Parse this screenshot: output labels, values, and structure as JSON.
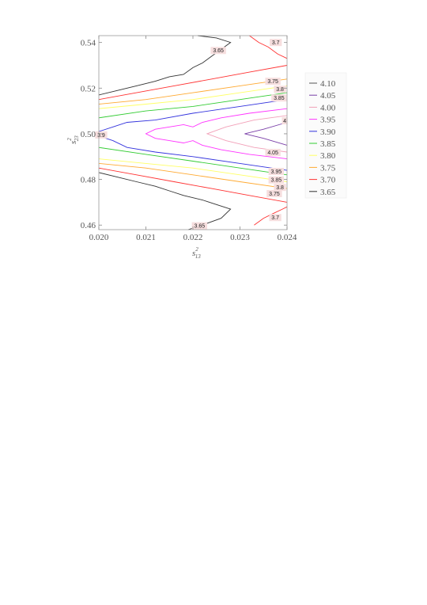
{
  "chart_data": {
    "type": "contour",
    "xlabel": "s",
    "xlabel_sup": "2",
    "xlabel_sub": "13",
    "ylabel": "s",
    "ylabel_sup": "2",
    "ylabel_sub": "23",
    "xlim": [
      0.02,
      0.024
    ],
    "ylim": [
      0.458,
      0.543
    ],
    "xticks": [
      "0.020",
      "0.021",
      "0.022",
      "0.023",
      "0.024"
    ],
    "xtick_values": [
      0.02,
      0.021,
      0.022,
      0.023,
      0.024
    ],
    "yticks": [
      "0.46",
      "0.48",
      "0.50",
      "0.52",
      "0.54"
    ],
    "ytick_values": [
      0.46,
      0.48,
      0.5,
      0.52,
      0.54
    ],
    "legend_position": "right",
    "legend": [
      {
        "label": "4.10",
        "color": "#555555"
      },
      {
        "label": "4.05",
        "color": "#7a3fa8"
      },
      {
        "label": "4.00",
        "color": "#f2a0b8"
      },
      {
        "label": "3.95",
        "color": "#ff33ff"
      },
      {
        "label": "3.90",
        "color": "#3333dd"
      },
      {
        "label": "3.85",
        "color": "#33cc33"
      },
      {
        "label": "3.80",
        "color": "#ffff66"
      },
      {
        "label": "3.75",
        "color": "#ffaa33"
      },
      {
        "label": "3.70",
        "color": "#ff3333"
      },
      {
        "label": "3.65",
        "color": "#333333"
      }
    ],
    "contours": [
      {
        "level": "3.65",
        "color": "#333333",
        "paths": [
          [
            [
              0.02,
              0.517
            ],
            [
              0.0204,
              0.519
            ],
            [
              0.0208,
              0.521
            ],
            [
              0.0212,
              0.523
            ],
            [
              0.0215,
              0.525
            ],
            [
              0.0218,
              0.526
            ],
            [
              0.022,
              0.529
            ],
            [
              0.0222,
              0.531
            ],
            [
              0.0224,
              0.534
            ],
            [
              0.0226,
              0.537
            ],
            [
              0.0228,
              0.54
            ],
            [
              0.0225,
              0.542
            ],
            [
              0.0221,
              0.543
            ]
          ],
          [
            [
              0.02,
              0.483
            ],
            [
              0.0204,
              0.481
            ],
            [
              0.0208,
              0.479
            ],
            [
              0.0212,
              0.477
            ],
            [
              0.0215,
              0.475
            ],
            [
              0.0218,
              0.473
            ],
            [
              0.0222,
              0.471
            ],
            [
              0.0225,
              0.469
            ],
            [
              0.0228,
              0.467
            ],
            [
              0.0226,
              0.463
            ],
            [
              0.0222,
              0.46
            ],
            [
              0.0219,
              0.458
            ]
          ]
        ]
      },
      {
        "level": "3.70",
        "color": "#ff3333",
        "paths": [
          [
            [
              0.02,
              0.515
            ],
            [
              0.0208,
              0.518
            ],
            [
              0.0216,
              0.521
            ],
            [
              0.0224,
              0.524
            ],
            [
              0.0232,
              0.527
            ],
            [
              0.024,
              0.53
            ]
          ],
          [
            [
              0.02,
              0.485
            ],
            [
              0.0208,
              0.482
            ],
            [
              0.0216,
              0.479
            ],
            [
              0.0224,
              0.476
            ],
            [
              0.0232,
              0.473
            ],
            [
              0.024,
              0.47
            ]
          ],
          [
            [
              0.0232,
              0.543
            ],
            [
              0.0234,
              0.54
            ],
            [
              0.0236,
              0.538
            ],
            [
              0.0238,
              0.535
            ],
            [
              0.024,
              0.533
            ]
          ],
          [
            [
              0.0233,
              0.46
            ],
            [
              0.0235,
              0.463
            ],
            [
              0.0237,
              0.465
            ],
            [
              0.0239,
              0.467
            ],
            [
              0.024,
              0.468
            ]
          ]
        ]
      },
      {
        "level": "3.75",
        "color": "#ffaa33",
        "paths": [
          [
            [
              0.02,
              0.513
            ],
            [
              0.021,
              0.515
            ],
            [
              0.022,
              0.518
            ],
            [
              0.023,
              0.521
            ],
            [
              0.024,
              0.524
            ]
          ],
          [
            [
              0.02,
              0.487
            ],
            [
              0.021,
              0.485
            ],
            [
              0.022,
              0.482
            ],
            [
              0.023,
              0.479
            ],
            [
              0.024,
              0.476
            ]
          ]
        ]
      },
      {
        "level": "3.80",
        "color": "#ffff66",
        "paths": [
          [
            [
              0.02,
              0.511
            ],
            [
              0.021,
              0.513
            ],
            [
              0.022,
              0.515
            ],
            [
              0.023,
              0.518
            ],
            [
              0.024,
              0.521
            ]
          ],
          [
            [
              0.02,
              0.489
            ],
            [
              0.021,
              0.487
            ],
            [
              0.022,
              0.485
            ],
            [
              0.023,
              0.482
            ],
            [
              0.024,
              0.479
            ]
          ]
        ]
      },
      {
        "level": "3.85",
        "color": "#33cc33",
        "paths": [
          [
            [
              0.02,
              0.507
            ],
            [
              0.021,
              0.51
            ],
            [
              0.022,
              0.512
            ],
            [
              0.023,
              0.515
            ],
            [
              0.024,
              0.518
            ]
          ],
          [
            [
              0.02,
              0.494
            ],
            [
              0.021,
              0.491
            ],
            [
              0.022,
              0.488
            ],
            [
              0.023,
              0.485
            ],
            [
              0.024,
              0.482
            ]
          ]
        ]
      },
      {
        "level": "3.90",
        "color": "#3333dd",
        "paths": [
          [
            [
              0.02,
              0.501
            ],
            [
              0.0203,
              0.503
            ],
            [
              0.0206,
              0.505
            ],
            [
              0.0212,
              0.506
            ],
            [
              0.022,
              0.509
            ],
            [
              0.023,
              0.512
            ],
            [
              0.024,
              0.515
            ]
          ],
          [
            [
              0.02,
              0.499
            ],
            [
              0.0203,
              0.497
            ],
            [
              0.0206,
              0.494
            ],
            [
              0.0212,
              0.492
            ],
            [
              0.022,
              0.49
            ],
            [
              0.023,
              0.487
            ],
            [
              0.024,
              0.484
            ]
          ]
        ]
      },
      {
        "level": "3.95",
        "color": "#ff33ff",
        "paths": [
          [
            [
              0.024,
              0.511
            ],
            [
              0.0232,
              0.509
            ],
            [
              0.0226,
              0.507
            ],
            [
              0.0222,
              0.505
            ],
            [
              0.022,
              0.503
            ],
            [
              0.0218,
              0.504
            ],
            [
              0.0215,
              0.503
            ],
            [
              0.0212,
              0.502
            ],
            [
              0.021,
              0.5
            ],
            [
              0.0212,
              0.498
            ],
            [
              0.0215,
              0.497
            ],
            [
              0.0218,
              0.496
            ],
            [
              0.022,
              0.497
            ],
            [
              0.0222,
              0.495
            ],
            [
              0.0226,
              0.493
            ],
            [
              0.0232,
              0.491
            ],
            [
              0.024,
              0.489
            ]
          ]
        ]
      },
      {
        "level": "4.00",
        "color": "#f2a0b8",
        "paths": [
          [
            [
              0.024,
              0.508
            ],
            [
              0.0233,
              0.506
            ],
            [
              0.0227,
              0.503
            ],
            [
              0.0223,
              0.5
            ],
            [
              0.0227,
              0.497
            ],
            [
              0.0233,
              0.494
            ],
            [
              0.024,
              0.492
            ]
          ]
        ]
      },
      {
        "level": "4.05",
        "color": "#7a3fa8",
        "paths": [
          [
            [
              0.024,
              0.505
            ],
            [
              0.0235,
              0.502
            ],
            [
              0.0231,
              0.5
            ],
            [
              0.0235,
              0.498
            ],
            [
              0.024,
              0.495
            ]
          ]
        ]
      }
    ],
    "contour_labels": [
      {
        "text": "3.65",
        "x": 0.02254,
        "y": 0.5365
      },
      {
        "text": "3.7",
        "x": 0.02376,
        "y": 0.54
      },
      {
        "text": "3.75",
        "x": 0.0237,
        "y": 0.523
      },
      {
        "text": "3.8",
        "x": 0.02385,
        "y": 0.5195
      },
      {
        "text": "3.85",
        "x": 0.02383,
        "y": 0.5157
      },
      {
        "text": "4",
        "x": 0.02395,
        "y": 0.5057
      },
      {
        "text": "3.9",
        "x": 0.02005,
        "y": 0.4995
      },
      {
        "text": "4.05",
        "x": 0.0237,
        "y": 0.4918
      },
      {
        "text": "3.95",
        "x": 0.02377,
        "y": 0.4835
      },
      {
        "text": "3.85",
        "x": 0.02377,
        "y": 0.4798
      },
      {
        "text": "3.8",
        "x": 0.02385,
        "y": 0.4765
      },
      {
        "text": "3.75",
        "x": 0.02373,
        "y": 0.4738
      },
      {
        "text": "3.7",
        "x": 0.02375,
        "y": 0.4633
      },
      {
        "text": "3.65",
        "x": 0.02214,
        "y": 0.4597
      }
    ]
  }
}
